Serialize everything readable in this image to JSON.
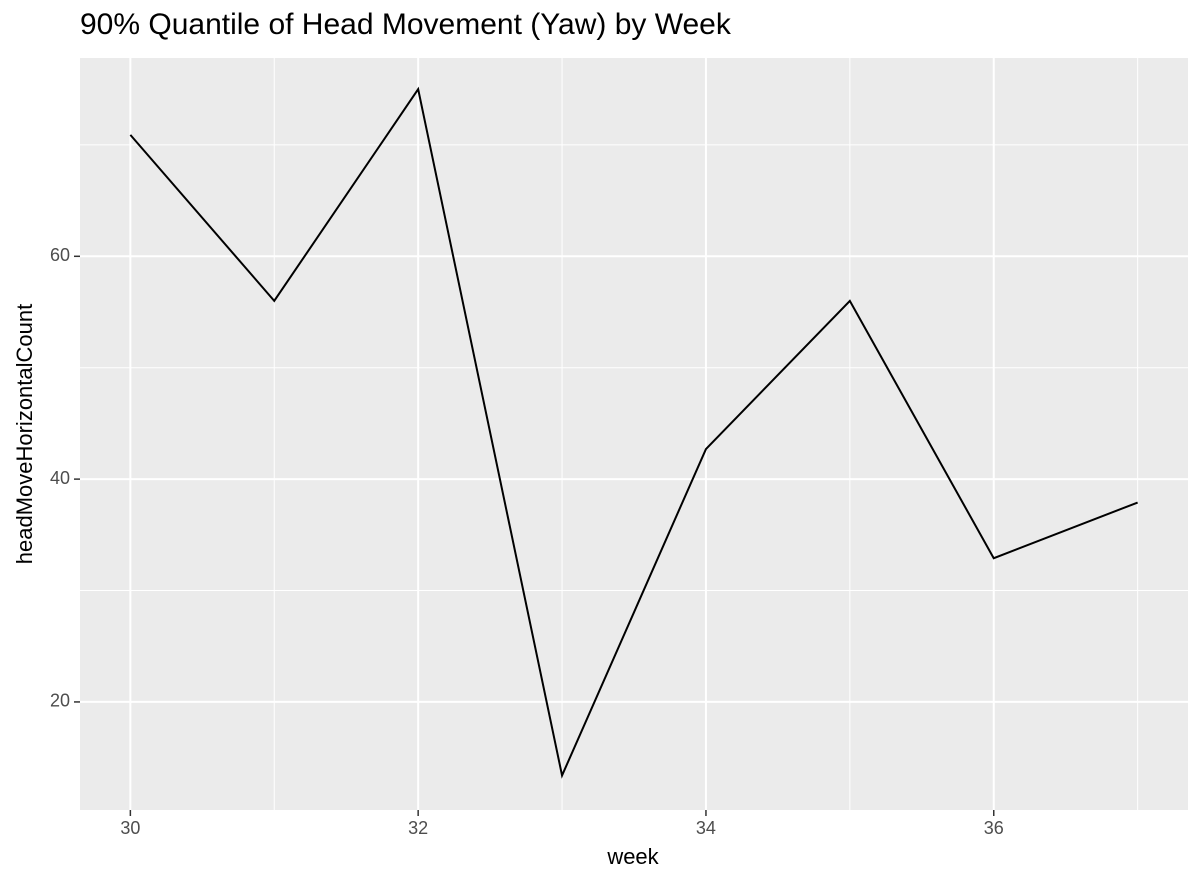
{
  "chart_data": {
    "type": "line",
    "title": "90% Quantile of Head Movement (Yaw) by Week",
    "x_label": "week",
    "y_label": "headMoveHorizontalCount",
    "x": [
      30,
      31,
      32,
      33,
      34,
      35,
      36,
      37
    ],
    "series": [
      {
        "name": "headMoveHorizontalCount",
        "color": "#000000",
        "values": [
          70.9,
          56,
          75,
          13.4,
          42.7,
          56,
          32.9,
          37.9
        ]
      }
    ],
    "xlim": [
      29.65,
      37.35
    ],
    "ylim": [
      10.3,
      77.8
    ],
    "xticks": [
      30,
      32,
      34,
      36
    ],
    "yticks": [
      20,
      40,
      60
    ],
    "x_minor_grid": [
      31,
      33,
      35,
      37
    ],
    "y_minor_grid": [
      30,
      50,
      70
    ],
    "grid": true
  }
}
